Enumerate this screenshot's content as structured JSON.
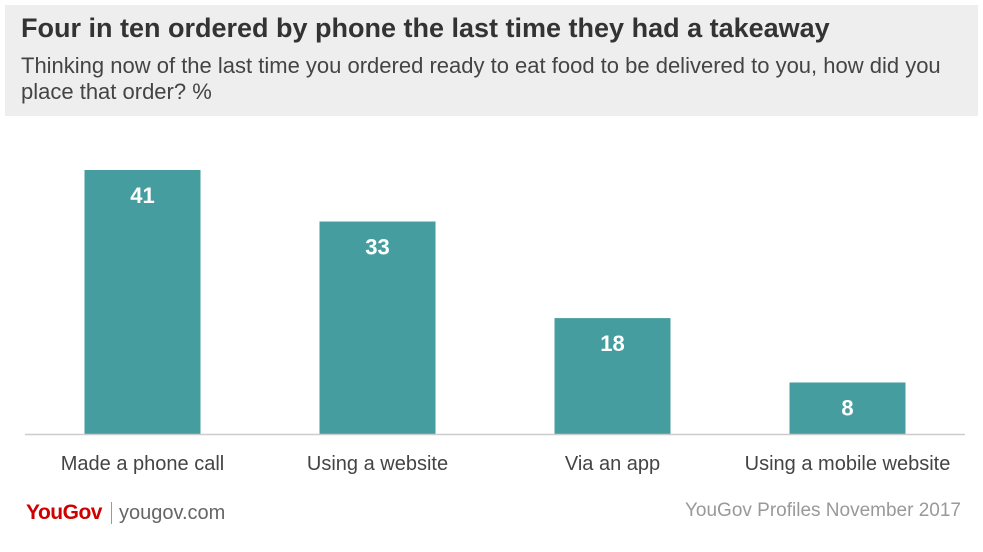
{
  "header": {
    "title": "Four in ten ordered by phone the last time they had a takeaway",
    "subtitle": "Thinking now of the last time you ordered ready to eat food to be delivered to you, how did you place that order? %"
  },
  "footer": {
    "logo": "YouGov",
    "site": "yougov.com",
    "source": "YouGov Profiles November 2017"
  },
  "colors": {
    "bar": "#459d9f",
    "bar_label": "#ffffff",
    "axis": "#cccccc",
    "category_label": "#444444"
  },
  "chart_data": {
    "type": "bar",
    "title": "Four in ten ordered by phone the last time they had a takeaway",
    "subtitle": "Thinking now of the last time you ordered ready to eat food to be delivered to you, how did you place that order? %",
    "categories": [
      "Made a phone call",
      "Using a website",
      "Via an app",
      "Using a mobile website"
    ],
    "values": [
      41,
      33,
      18,
      8
    ],
    "ylim": [
      0,
      41
    ],
    "grid": false,
    "legend": "none",
    "data_labels": "inside-top"
  }
}
